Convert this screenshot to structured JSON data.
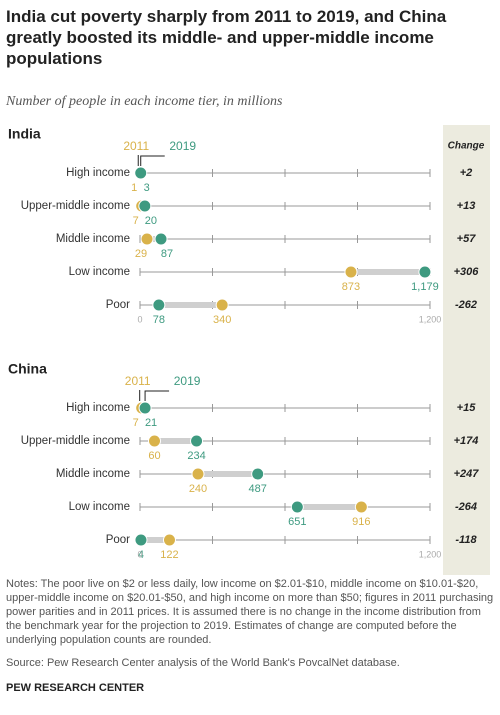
{
  "title": "India cut poverty sharply from 2011 to 2019, and China greatly boosted its middle- and upper-middle income populations",
  "subtitle": "Number of people in each income tier, in millions",
  "change_header": "Change",
  "chart_data": [
    {
      "type": "dot",
      "title": "India",
      "categories": [
        "High income",
        "Upper-middle income",
        "Middle income",
        "Low income",
        "Poor"
      ],
      "series": [
        {
          "name": "2011",
          "color": "#d9b24a",
          "values": [
            1,
            7,
            29,
            873,
            340
          ]
        },
        {
          "name": "2019",
          "color": "#3e9a80",
          "values": [
            3,
            20,
            87,
            1179,
            78
          ],
          "value_labels": [
            "3",
            "20",
            "87",
            "1,179",
            "78"
          ]
        }
      ],
      "change": {
        "values": [
          2,
          13,
          57,
          306,
          -262
        ],
        "value_labels": [
          "+2",
          "+13",
          "+57",
          "+306",
          "-262"
        ]
      },
      "xlim": [
        0,
        1200
      ],
      "xticks": [
        0,
        {
          "value": 1200,
          "label": "1,200"
        }
      ],
      "minor_xticks": [
        300,
        600,
        900
      ]
    },
    {
      "type": "dot",
      "title": "China",
      "categories": [
        "High income",
        "Upper-middle income",
        "Middle income",
        "Low income",
        "Poor"
      ],
      "series": [
        {
          "name": "2011",
          "color": "#d9b24a",
          "values": [
            7,
            60,
            240,
            916,
            122
          ]
        },
        {
          "name": "2019",
          "color": "#3e9a80",
          "values": [
            21,
            234,
            487,
            651,
            4
          ]
        }
      ],
      "change": {
        "values": [
          15,
          174,
          247,
          -264,
          -118
        ],
        "value_labels": [
          "+15",
          "+174",
          "+247",
          "-264",
          "-118"
        ]
      },
      "xlim": [
        0,
        1200
      ],
      "xticks": [
        0,
        {
          "value": 1200,
          "label": "1,200"
        }
      ],
      "minor_xticks": [
        300,
        600,
        900
      ]
    }
  ],
  "notes": "Notes: The poor live on $2 or less daily, low income on $2.01-$10, middle income on $10.01-$20, upper-middle income on $20.01-$50, and high income on more than $50; figures in 2011 purchasing power parities and in 2011 prices. It is assumed there is no change in the income distribution from the benchmark year for the projection to 2019. Estimates of change are computed before the underlying population counts are rounded.",
  "source": "Source: Pew Research Center analysis of the World Bank's PovcalNet database.",
  "credit": "PEW RESEARCH CENTER"
}
